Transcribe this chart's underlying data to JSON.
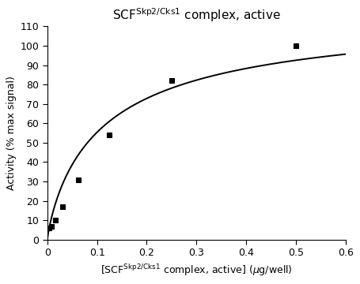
{
  "ylabel": "Activity (% max signal)",
  "xlabel_text": "[SCF$^{\\mathrm{Skp2/Cks1}}$ complex, active] ($\\mu$g/well)",
  "title_text": "SCF$^{\\mathrm{Skp2/Cks1}}$ complex, active",
  "x_data": [
    0.004,
    0.008,
    0.016,
    0.031,
    0.063,
    0.125,
    0.25,
    0.5
  ],
  "y_data": [
    6.0,
    7.0,
    10.0,
    17.0,
    31.0,
    54.0,
    82.0,
    100.0
  ],
  "xlim": [
    0.0,
    0.6
  ],
  "ylim": [
    0,
    110
  ],
  "xticks": [
    0.0,
    0.1,
    0.2,
    0.3,
    0.4,
    0.5,
    0.6
  ],
  "yticks": [
    0,
    10,
    20,
    30,
    40,
    50,
    60,
    70,
    80,
    90,
    100,
    110
  ],
  "Km": 0.12,
  "Vmax": 120.0,
  "n": 0.85,
  "background_color": "#ffffff",
  "curve_color": "#000000",
  "marker_color": "#000000",
  "marker_style": "s",
  "marker_size": 4,
  "title_fontsize": 11,
  "label_fontsize": 9,
  "tick_fontsize": 9
}
